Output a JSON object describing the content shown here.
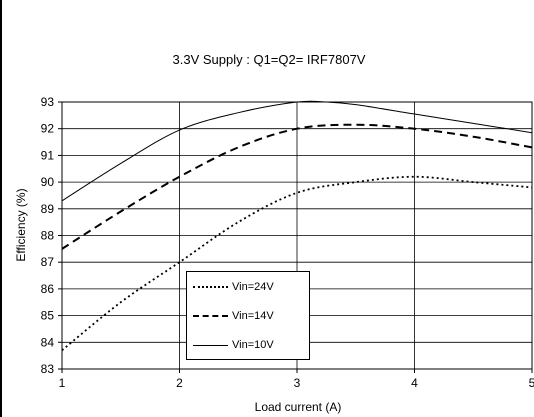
{
  "chart_data": {
    "type": "line",
    "title": "3.3V Supply : Q1=Q2= IRF7807V",
    "xlabel": "Load current (A)",
    "ylabel": "Efficiency (%)",
    "xlim": [
      1,
      5
    ],
    "ylim": [
      83,
      93
    ],
    "xticks": [
      "1",
      "2",
      "3",
      "4",
      "5"
    ],
    "yticks": [
      "83",
      "84",
      "85",
      "86",
      "87",
      "88",
      "89",
      "90",
      "91",
      "92",
      "93"
    ],
    "grid": true,
    "legend_position": "bottom-center",
    "series": [
      {
        "name": "Vin=24V",
        "style": "dotted",
        "color": "#000000",
        "x": [
          1.0,
          1.5,
          2.0,
          2.5,
          3.0,
          3.5,
          4.0,
          4.5,
          5.0
        ],
        "y": [
          83.7,
          85.5,
          87.0,
          88.5,
          89.6,
          90.0,
          90.2,
          90.0,
          89.8
        ]
      },
      {
        "name": "Vin=14V",
        "style": "dashed",
        "color": "#000000",
        "x": [
          1.0,
          1.5,
          2.0,
          2.5,
          3.0,
          3.5,
          4.0,
          4.5,
          5.0
        ],
        "y": [
          87.5,
          88.9,
          90.2,
          91.3,
          92.0,
          92.15,
          92.0,
          91.7,
          91.3
        ]
      },
      {
        "name": "Vin=10V",
        "style": "solid",
        "color": "#000000",
        "x": [
          1.0,
          1.5,
          2.0,
          2.5,
          3.0,
          3.25,
          3.5,
          4.0,
          4.5,
          5.0
        ],
        "y": [
          89.3,
          90.7,
          91.95,
          92.6,
          93.0,
          93.0,
          92.9,
          92.55,
          92.2,
          91.85
        ]
      }
    ]
  }
}
